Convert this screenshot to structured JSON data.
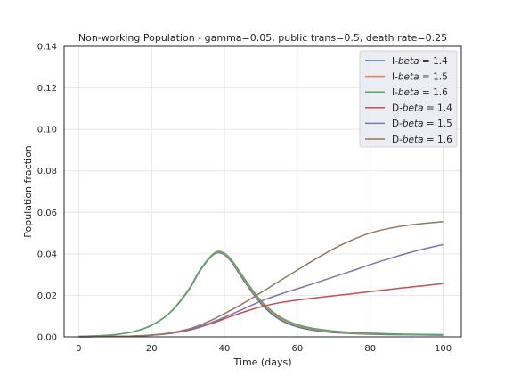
{
  "chart_data": {
    "type": "line",
    "title": "Non-working Population - gamma=0.05, public trans=0.5, death rate=0.25",
    "xlabel": "Time (days)",
    "ylabel": "Population fraction",
    "xlim": [
      -4,
      105
    ],
    "ylim": [
      0,
      0.14
    ],
    "xticks": [
      0,
      20,
      40,
      60,
      80,
      100
    ],
    "yticks": [
      0.0,
      0.02,
      0.04,
      0.06,
      0.08,
      0.1,
      0.12,
      0.14
    ],
    "xtick_labels": [
      "0",
      "20",
      "40",
      "60",
      "80",
      "100"
    ],
    "ytick_labels": [
      "0.00",
      "0.02",
      "0.04",
      "0.06",
      "0.08",
      "0.10",
      "0.12",
      "0.14"
    ],
    "grid": true,
    "legend_position": "top-right",
    "x": [
      0,
      5,
      10,
      15,
      20,
      25,
      30,
      33,
      36,
      38,
      40,
      42,
      45,
      50,
      55,
      60,
      65,
      70,
      75,
      80,
      85,
      90,
      95,
      100
    ],
    "series": [
      {
        "prefix": "I-",
        "param": "beta",
        "value": "1.4",
        "color": "#4c72b0",
        "values": [
          0.0002,
          0.0005,
          0.0011,
          0.0025,
          0.0055,
          0.0115,
          0.022,
          0.031,
          0.038,
          0.0405,
          0.0395,
          0.036,
          0.028,
          0.016,
          0.0085,
          0.0048,
          0.003,
          0.0021,
          0.0016,
          0.0013,
          0.0011,
          0.001,
          0.0009,
          0.0008
        ]
      },
      {
        "prefix": "I-",
        "param": "beta",
        "value": "1.5",
        "color": "#dd8452",
        "values": [
          0.0002,
          0.0005,
          0.0011,
          0.0025,
          0.0056,
          0.0116,
          0.0222,
          0.0312,
          0.0382,
          0.0408,
          0.0399,
          0.0365,
          0.0287,
          0.0168,
          0.0092,
          0.0054,
          0.0035,
          0.0025,
          0.0019,
          0.0016,
          0.0014,
          0.0012,
          0.0011,
          0.001
        ]
      },
      {
        "prefix": "I-",
        "param": "beta",
        "value": "1.6",
        "color": "#55a868",
        "values": [
          0.0002,
          0.0005,
          0.0011,
          0.0025,
          0.0056,
          0.0117,
          0.0224,
          0.0315,
          0.0385,
          0.0412,
          0.0403,
          0.037,
          0.0293,
          0.0175,
          0.0099,
          0.0059,
          0.0039,
          0.0028,
          0.0022,
          0.0018,
          0.0015,
          0.0013,
          0.0012,
          0.0011
        ]
      },
      {
        "prefix": "D-",
        "param": "beta",
        "value": "1.4",
        "color": "#c44e52",
        "values": [
          0.0,
          0.0001,
          0.0002,
          0.0004,
          0.0008,
          0.0016,
          0.0031,
          0.0045,
          0.0062,
          0.0074,
          0.0087,
          0.01,
          0.0118,
          0.0145,
          0.0164,
          0.0177,
          0.0188,
          0.0198,
          0.0208,
          0.0218,
          0.0228,
          0.0238,
          0.0247,
          0.0257
        ]
      },
      {
        "prefix": "D-",
        "param": "beta",
        "value": "1.5",
        "color": "#8172b3",
        "values": [
          0.0,
          0.0001,
          0.0002,
          0.0004,
          0.0008,
          0.0017,
          0.0033,
          0.0048,
          0.0066,
          0.008,
          0.0095,
          0.011,
          0.0133,
          0.0172,
          0.0204,
          0.0232,
          0.026,
          0.0289,
          0.0318,
          0.0348,
          0.0376,
          0.0402,
          0.0425,
          0.0445
        ]
      },
      {
        "prefix": "D-",
        "param": "beta",
        "value": "1.6",
        "color": "#937860",
        "values": [
          0.0,
          0.0001,
          0.0002,
          0.0004,
          0.0009,
          0.0019,
          0.0037,
          0.0055,
          0.0077,
          0.0094,
          0.0112,
          0.0131,
          0.016,
          0.0213,
          0.0268,
          0.0322,
          0.0375,
          0.0425,
          0.0467,
          0.05,
          0.0522,
          0.0537,
          0.0547,
          0.0555
        ]
      }
    ]
  }
}
